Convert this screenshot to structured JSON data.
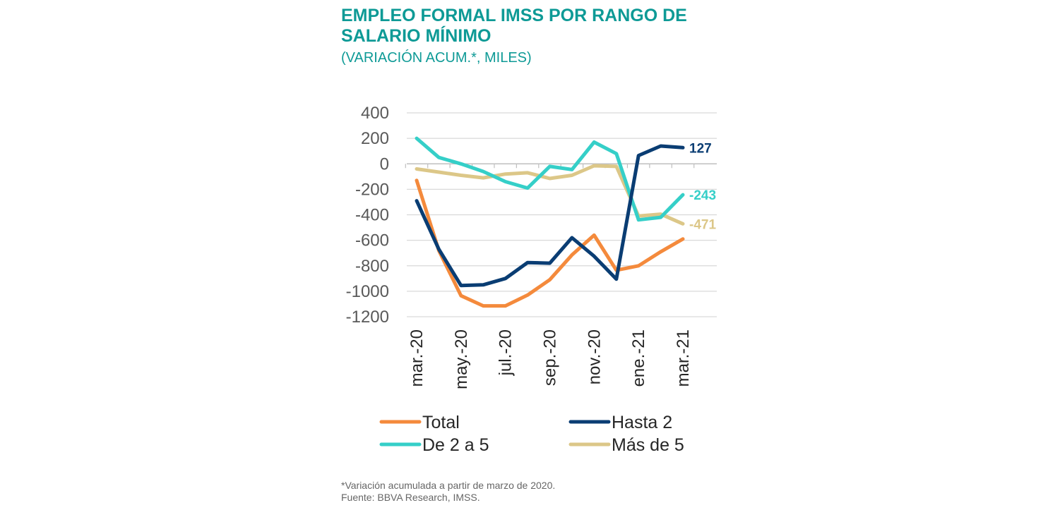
{
  "header": {
    "title": "EMPLEO FORMAL IMSS POR RANGO DE SALARIO MÍNIMO",
    "subtitle": "(VARIACIÓN ACUM.*, MILES)"
  },
  "footer": {
    "note": "*Variación acumulada a partir de marzo de 2020.",
    "source": "Fuente: BBVA Research, IMSS."
  },
  "chart_data": {
    "type": "line",
    "x": [
      "mar.-20",
      "abr.-20",
      "may.-20",
      "jun.-20",
      "jul.-20",
      "ago.-20",
      "sep.-20",
      "oct.-20",
      "nov.-20",
      "dic.-20",
      "ene.-21",
      "feb.-21",
      "mar.-21"
    ],
    "x_tick_labels": [
      "mar.-20",
      "may.-20",
      "jul.-20",
      "sep.-20",
      "nov.-20",
      "ene.-21",
      "mar.-21"
    ],
    "ylim": [
      -1200,
      400
    ],
    "y_ticks": [
      "400",
      "200",
      "0",
      "-200",
      "-400",
      "-600",
      "-800",
      "-1000",
      "-1200"
    ],
    "grid": true,
    "legend_position": "bottom",
    "series": [
      {
        "name": "Total",
        "color": "#f48a3c",
        "values": [
          -130,
          -680,
          -1035,
          -1115,
          -1115,
          -1030,
          -910,
          -715,
          -560,
          -835,
          -800,
          -690,
          -590
        ]
      },
      {
        "name": "Hasta 2",
        "color": "#0a3d73",
        "values": [
          -290,
          -670,
          -955,
          -950,
          -900,
          -775,
          -780,
          -580,
          -725,
          -905,
          65,
          140,
          127
        ],
        "end_label": "127"
      },
      {
        "name": "De 2 a 5",
        "color": "#35cfc8",
        "values": [
          200,
          50,
          0,
          -60,
          -140,
          -190,
          -20,
          -45,
          170,
          80,
          -440,
          -420,
          -243
        ],
        "end_label": "-243"
      },
      {
        "name": "Más de 5",
        "color": "#dcc788",
        "values": [
          -40,
          -65,
          -90,
          -110,
          -80,
          -70,
          -115,
          -90,
          -15,
          -20,
          -410,
          -395,
          -471
        ],
        "end_label": "-471"
      }
    ]
  }
}
